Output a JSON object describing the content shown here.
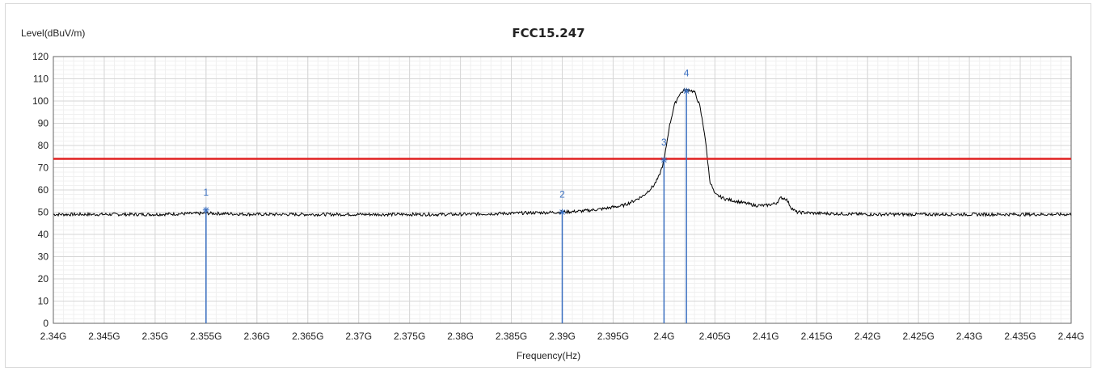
{
  "chart_data": {
    "type": "line",
    "title": "FCC15.247",
    "xlabel": "Frequency(Hz)",
    "ylabel": "Level(dBuV/m)",
    "xlim": [
      2.34,
      2.44
    ],
    "ylim": [
      0,
      120
    ],
    "x_tick_values": [
      2.34,
      2.345,
      2.35,
      2.355,
      2.36,
      2.365,
      2.37,
      2.375,
      2.38,
      2.385,
      2.39,
      2.395,
      2.4,
      2.405,
      2.41,
      2.415,
      2.42,
      2.425,
      2.43,
      2.435,
      2.44
    ],
    "x_tick_labels": [
      "2.34G",
      "2.345G",
      "2.35G",
      "2.355G",
      "2.36G",
      "2.365G",
      "2.37G",
      "2.375G",
      "2.38G",
      "2.385G",
      "2.39G",
      "2.395G",
      "2.4G",
      "2.405G",
      "2.41G",
      "2.415G",
      "2.42G",
      "2.425G",
      "2.43G",
      "2.435G",
      "2.44G"
    ],
    "y_ticks": [
      0,
      10,
      20,
      30,
      40,
      50,
      60,
      70,
      80,
      90,
      100,
      110,
      120
    ],
    "grid": true,
    "series": [
      {
        "color": "#000000",
        "x": [
          2.34,
          2.345,
          2.35,
          2.355,
          2.36,
          2.365,
          2.37,
          2.375,
          2.38,
          2.385,
          2.39,
          2.392,
          2.394,
          2.396,
          2.397,
          2.398,
          2.399,
          2.3995,
          2.4,
          2.4005,
          2.401,
          2.4015,
          2.402,
          2.4025,
          2.403,
          2.4035,
          2.404,
          2.4045,
          2.405,
          2.406,
          2.407,
          2.408,
          2.409,
          2.41,
          2.411,
          2.4115,
          2.412,
          2.4125,
          2.413,
          2.415,
          2.42,
          2.425,
          2.43,
          2.435,
          2.44
        ],
        "values": [
          49,
          49,
          49,
          49.5,
          49,
          49,
          49,
          49,
          49,
          49.5,
          50,
          50.5,
          51.5,
          53,
          55,
          57.5,
          62,
          66,
          73,
          88,
          98,
          103,
          105,
          105,
          104,
          98,
          85,
          64,
          58,
          56,
          55,
          54,
          53,
          53,
          54,
          56.5,
          56,
          52,
          50,
          49.5,
          49,
          49,
          49,
          49,
          49
        ]
      }
    ],
    "limit_line": {
      "value": 74,
      "color": "#e02020"
    },
    "markers": [
      {
        "label": "1",
        "x": 2.355,
        "y": 51
      },
      {
        "label": "2",
        "x": 2.39,
        "y": 50
      },
      {
        "label": "3",
        "x": 2.4,
        "y": 73.5
      },
      {
        "label": "4",
        "x": 2.4022,
        "y": 104.5
      }
    ],
    "marker_color": "#3a6fc0"
  }
}
